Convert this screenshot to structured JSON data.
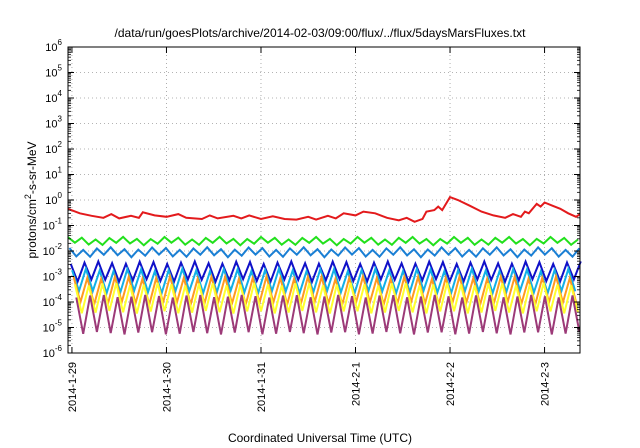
{
  "chart_data": {
    "type": "line",
    "title": "/data/run/goesPlots/archive/2014-02-03/09:00/flux/../flux/5daysMarsFluxes.txt",
    "xlabel": "Coordinated Universal Time (UTC)",
    "ylabel_parts": {
      "pre": "protons/cm",
      "sup": "2",
      "post": "-s-sr-MeV"
    },
    "yscale": "log",
    "ylim": [
      1e-06,
      1000000.0
    ],
    "xlim": [
      "2014-01-28T23:00",
      "2014-02-03T09:00"
    ],
    "grid": true,
    "x_ticks": [
      {
        "label": "2014-1-29",
        "t": "2014-01-29T00:00"
      },
      {
        "label": "2014-1-30",
        "t": "2014-01-30T00:00"
      },
      {
        "label": "2014-1-31",
        "t": "2014-01-31T00:00"
      },
      {
        "label": "2014-2-1",
        "t": "2014-02-01T00:00"
      },
      {
        "label": "2014-2-2",
        "t": "2014-02-02T00:00"
      },
      {
        "label": "2014-2-3",
        "t": "2014-02-03T00:00"
      }
    ],
    "y_ticks": [
      {
        "base": "10",
        "exp": "-6",
        "value": 1e-06
      },
      {
        "base": "10",
        "exp": "-5",
        "value": 1e-05
      },
      {
        "base": "10",
        "exp": "-4",
        "value": 0.0001
      },
      {
        "base": "10",
        "exp": "-3",
        "value": 0.001
      },
      {
        "base": "10",
        "exp": "-2",
        "value": 0.01
      },
      {
        "base": "10",
        "exp": "-1",
        "value": 0.1
      },
      {
        "base": "10",
        "exp": "0",
        "value": 1
      },
      {
        "base": "10",
        "exp": "1",
        "value": 10
      },
      {
        "base": "10",
        "exp": "2",
        "value": 100
      },
      {
        "base": "10",
        "exp": "3",
        "value": 1000
      },
      {
        "base": "10",
        "exp": "4",
        "value": 10000
      },
      {
        "base": "10",
        "exp": "5",
        "value": 100000
      },
      {
        "base": "10",
        "exp": "6",
        "value": 1000000
      }
    ],
    "series": [
      {
        "color": "#e31a1c",
        "values": [
          {
            "t": "2014-01-28T23:00",
            "y": 0.45
          },
          {
            "t": "2014-01-29T02:00",
            "y": 0.3
          },
          {
            "t": "2014-01-29T05:00",
            "y": 0.24
          },
          {
            "t": "2014-01-29T08:00",
            "y": 0.2
          },
          {
            "t": "2014-01-29T10:00",
            "y": 0.28
          },
          {
            "t": "2014-01-29T12:00",
            "y": 0.19
          },
          {
            "t": "2014-01-29T15:00",
            "y": 0.24
          },
          {
            "t": "2014-01-29T17:00",
            "y": 0.2
          },
          {
            "t": "2014-01-29T18:00",
            "y": 0.33
          },
          {
            "t": "2014-01-29T21:00",
            "y": 0.25
          },
          {
            "t": "2014-01-30T00:00",
            "y": 0.22
          },
          {
            "t": "2014-01-30T03:00",
            "y": 0.28
          },
          {
            "t": "2014-01-30T05:00",
            "y": 0.2
          },
          {
            "t": "2014-01-30T09:00",
            "y": 0.18
          },
          {
            "t": "2014-01-30T11:00",
            "y": 0.25
          },
          {
            "t": "2014-01-30T13:00",
            "y": 0.19
          },
          {
            "t": "2014-01-30T17:00",
            "y": 0.24
          },
          {
            "t": "2014-01-30T19:00",
            "y": 0.19
          },
          {
            "t": "2014-01-30T21:00",
            "y": 0.25
          },
          {
            "t": "2014-01-31T00:00",
            "y": 0.18
          },
          {
            "t": "2014-01-31T03:00",
            "y": 0.23
          },
          {
            "t": "2014-01-31T06:00",
            "y": 0.18
          },
          {
            "t": "2014-01-31T09:00",
            "y": 0.17
          },
          {
            "t": "2014-01-31T12:00",
            "y": 0.22
          },
          {
            "t": "2014-01-31T14:00",
            "y": 0.17
          },
          {
            "t": "2014-01-31T17:00",
            "y": 0.24
          },
          {
            "t": "2014-01-31T19:00",
            "y": 0.19
          },
          {
            "t": "2014-01-31T21:00",
            "y": 0.3
          },
          {
            "t": "2014-02-01T00:00",
            "y": 0.25
          },
          {
            "t": "2014-02-01T02:00",
            "y": 0.35
          },
          {
            "t": "2014-02-01T05:00",
            "y": 0.3
          },
          {
            "t": "2014-02-01T08:00",
            "y": 0.2
          },
          {
            "t": "2014-02-01T11:00",
            "y": 0.16
          },
          {
            "t": "2014-02-01T13:00",
            "y": 0.2
          },
          {
            "t": "2014-02-01T15:00",
            "y": 0.14
          },
          {
            "t": "2014-02-01T17:00",
            "y": 0.18
          },
          {
            "t": "2014-02-01T18:00",
            "y": 0.35
          },
          {
            "t": "2014-02-01T20:00",
            "y": 0.4
          },
          {
            "t": "2014-02-01T21:00",
            "y": 0.55
          },
          {
            "t": "2014-02-01T22:00",
            "y": 0.4
          },
          {
            "t": "2014-02-02T00:00",
            "y": 1.3
          },
          {
            "t": "2014-02-02T02:00",
            "y": 1.0
          },
          {
            "t": "2014-02-02T05:00",
            "y": 0.6
          },
          {
            "t": "2014-02-02T08:00",
            "y": 0.35
          },
          {
            "t": "2014-02-02T11:00",
            "y": 0.25
          },
          {
            "t": "2014-02-02T14:00",
            "y": 0.2
          },
          {
            "t": "2014-02-02T16:00",
            "y": 0.28
          },
          {
            "t": "2014-02-02T18:00",
            "y": 0.22
          },
          {
            "t": "2014-02-02T19:00",
            "y": 0.35
          },
          {
            "t": "2014-02-02T20:00",
            "y": 0.3
          },
          {
            "t": "2014-02-02T22:00",
            "y": 0.7
          },
          {
            "t": "2014-02-02T23:00",
            "y": 0.55
          },
          {
            "t": "2014-02-03T00:00",
            "y": 0.8
          },
          {
            "t": "2014-02-03T02:00",
            "y": 0.6
          },
          {
            "t": "2014-02-03T04:00",
            "y": 0.45
          },
          {
            "t": "2014-02-03T06:00",
            "y": 0.3
          },
          {
            "t": "2014-02-03T08:00",
            "y": 0.22
          },
          {
            "t": "2014-02-03T09:00",
            "y": 0.28
          }
        ]
      },
      {
        "color": "#22e01c",
        "peak": 0.032,
        "trough": 0.019,
        "base": 0.024,
        "offset": 0.0
      },
      {
        "color": "#1a7fd4",
        "peak": 0.0125,
        "trough": 0.0065,
        "base": 0.009,
        "offset": 0.1
      },
      {
        "color": "#1010c8",
        "peak": 0.0035,
        "trough": 0.0007,
        "base": 0.0016,
        "offset": 0.2
      },
      {
        "color": "#12b0e6",
        "peak": 0.0018,
        "trough": 0.00025,
        "base": 0.0007,
        "offset": 0.3
      },
      {
        "color": "#ff9a1f",
        "peak": 0.0009,
        "trough": 9e-05,
        "base": 0.0003,
        "offset": 0.4
      },
      {
        "color": "#ffff2e",
        "peak": 0.0005,
        "trough": 4e-05,
        "base": 0.00015,
        "offset": 0.5
      },
      {
        "color": "#9c3a78",
        "peak": 0.00017,
        "trough": 6e-06,
        "base": 3e-05,
        "offset": 0.6
      }
    ]
  }
}
